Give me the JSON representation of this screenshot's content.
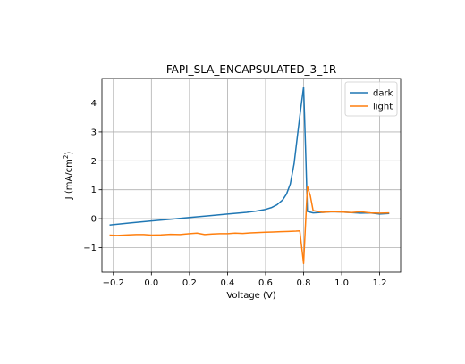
{
  "chart_data": {
    "type": "line",
    "title": "FAPI_SLA_ENCAPSULATED_3_1R",
    "xlabel": "Voltage (V)",
    "ylabel_main": "J (mA/cm",
    "ylabel_sup": "2",
    "ylabel_close": ")",
    "xlim": [
      -0.26,
      1.31
    ],
    "ylim": [
      -1.85,
      4.85
    ],
    "grid": true,
    "legend_position": "top-right",
    "x_ticks": [
      -0.2,
      0.0,
      0.2,
      0.4,
      0.6,
      0.8,
      1.0,
      1.2
    ],
    "x_tick_labels": [
      "−0.2",
      "0.0",
      "0.2",
      "0.4",
      "0.6",
      "0.8",
      "1.0",
      "1.2"
    ],
    "y_ticks": [
      -1,
      0,
      1,
      2,
      3,
      4
    ],
    "y_tick_labels": [
      "−1",
      "0",
      "1",
      "2",
      "3",
      "4"
    ],
    "series": [
      {
        "name": "dark",
        "color": "#1f77b4",
        "x": [
          -0.22,
          -0.1,
          0.0,
          0.1,
          0.2,
          0.3,
          0.4,
          0.5,
          0.55,
          0.6,
          0.63,
          0.66,
          0.69,
          0.71,
          0.73,
          0.75,
          0.77,
          0.785,
          0.8,
          0.81,
          0.82,
          0.85,
          0.9,
          0.95,
          1.0,
          1.05,
          1.1,
          1.15,
          1.2,
          1.25
        ],
        "y": [
          -0.22,
          -0.14,
          -0.08,
          -0.02,
          0.04,
          0.1,
          0.16,
          0.22,
          0.26,
          0.32,
          0.38,
          0.48,
          0.65,
          0.85,
          1.2,
          1.9,
          3.0,
          3.8,
          4.55,
          2.5,
          0.25,
          0.2,
          0.22,
          0.24,
          0.23,
          0.21,
          0.19,
          0.2,
          0.16,
          0.18
        ]
      },
      {
        "name": "light",
        "color": "#ff7f0e",
        "x": [
          -0.22,
          -0.18,
          -0.12,
          -0.08,
          -0.04,
          0.0,
          0.05,
          0.1,
          0.15,
          0.2,
          0.24,
          0.28,
          0.32,
          0.36,
          0.4,
          0.44,
          0.48,
          0.52,
          0.56,
          0.6,
          0.64,
          0.68,
          0.72,
          0.76,
          0.78,
          0.8,
          0.81,
          0.82,
          0.835,
          0.85,
          0.9,
          0.95,
          1.0,
          1.05,
          1.1,
          1.15,
          1.2,
          1.25
        ],
        "y": [
          -0.57,
          -0.58,
          -0.56,
          -0.55,
          -0.55,
          -0.57,
          -0.56,
          -0.54,
          -0.55,
          -0.52,
          -0.5,
          -0.55,
          -0.53,
          -0.52,
          -0.52,
          -0.5,
          -0.51,
          -0.49,
          -0.48,
          -0.47,
          -0.46,
          -0.45,
          -0.44,
          -0.43,
          -0.42,
          -1.55,
          -0.2,
          1.12,
          0.8,
          0.28,
          0.22,
          0.24,
          0.23,
          0.21,
          0.24,
          0.2,
          0.19,
          0.2
        ]
      }
    ]
  }
}
